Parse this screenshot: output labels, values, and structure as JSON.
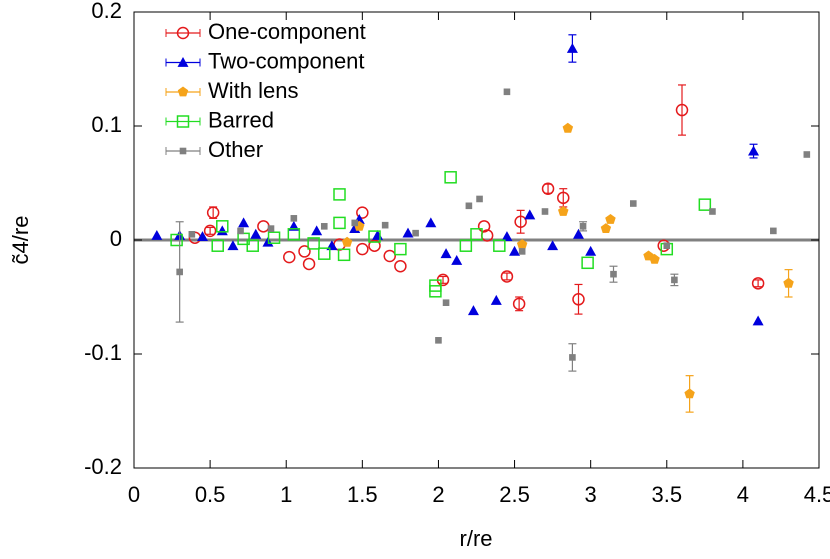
{
  "chart_data": {
    "type": "scatter",
    "x_label": "r/re",
    "y_label": "c̃4/re",
    "xlim": [
      0,
      4.5
    ],
    "xticks": [
      0,
      0.5,
      1,
      1.5,
      2,
      2.5,
      3,
      3.5,
      4,
      4.5
    ],
    "ylim": [
      -0.2,
      0.2
    ],
    "yticks": [
      -0.2,
      -0.1,
      0,
      0.1,
      0.2
    ],
    "legend": "top-left",
    "series": [
      {
        "name": "One-component",
        "color": "#e41a1c",
        "marker": "circle-open",
        "x": [
          0.4,
          0.5,
          0.52,
          0.85,
          1.02,
          1.12,
          1.15,
          1.35,
          1.5,
          1.5,
          1.58,
          1.68,
          1.75,
          2.03,
          2.3,
          2.32,
          2.45,
          2.53,
          2.54,
          2.72,
          2.82,
          2.92,
          3.6,
          3.48,
          4.1
        ],
        "values": [
          0.002,
          0.008,
          0.024,
          0.012,
          -0.015,
          -0.01,
          -0.021,
          -0.004,
          -0.008,
          0.024,
          -0.005,
          -0.014,
          -0.023,
          -0.035,
          0.012,
          0.004,
          -0.032,
          -0.056,
          0.016,
          0.045,
          0.037,
          -0.052,
          0.114,
          -0.005,
          -0.038
        ],
        "errors": [
          null,
          0.003,
          0.005,
          null,
          null,
          null,
          null,
          null,
          null,
          null,
          null,
          null,
          null,
          0.003,
          null,
          null,
          0.003,
          0.006,
          0.01,
          0.004,
          0.008,
          0.013,
          0.022,
          null,
          0.003
        ]
      },
      {
        "name": "Two-component",
        "color": "#0000dd",
        "marker": "triangle",
        "x": [
          0.15,
          0.3,
          0.45,
          0.58,
          0.65,
          0.72,
          0.8,
          0.88,
          1.05,
          1.2,
          1.3,
          1.45,
          1.48,
          1.6,
          1.8,
          1.95,
          2.05,
          2.12,
          2.23,
          2.38,
          2.45,
          2.5,
          2.6,
          2.75,
          2.88,
          2.92,
          3.0,
          4.07,
          4.1
        ],
        "values": [
          0.004,
          0.004,
          0.003,
          0.008,
          -0.005,
          0.015,
          0.005,
          -0.002,
          0.012,
          0.008,
          -0.005,
          0.01,
          0.018,
          0.004,
          0.006,
          0.015,
          -0.012,
          -0.018,
          -0.062,
          -0.053,
          0.003,
          -0.01,
          0.022,
          -0.005,
          0.168,
          0.005,
          -0.01,
          0.078,
          -0.071
        ],
        "errors": [
          null,
          null,
          null,
          null,
          null,
          null,
          null,
          null,
          null,
          null,
          null,
          null,
          null,
          null,
          null,
          null,
          null,
          null,
          null,
          null,
          null,
          null,
          null,
          null,
          0.012,
          null,
          null,
          0.006,
          null
        ]
      },
      {
        "name": "With lens",
        "color": "#f5a31a",
        "marker": "pentagon",
        "x": [
          1.4,
          1.48,
          2.55,
          2.82,
          2.85,
          3.1,
          3.13,
          3.38,
          3.42,
          3.65,
          4.3
        ],
        "values": [
          -0.002,
          0.012,
          -0.004,
          0.025,
          0.098,
          0.01,
          0.018,
          -0.014,
          -0.017,
          -0.135,
          -0.038
        ],
        "errors": [
          null,
          null,
          null,
          null,
          null,
          null,
          null,
          null,
          null,
          0.016,
          0.012
        ]
      },
      {
        "name": "Barred",
        "color": "#22dd22",
        "marker": "square-open",
        "x": [
          0.28,
          0.55,
          0.58,
          0.72,
          0.78,
          0.92,
          1.05,
          1.18,
          1.25,
          1.35,
          1.35,
          1.38,
          1.58,
          1.75,
          1.98,
          1.98,
          2.08,
          2.18,
          2.25,
          2.4,
          2.98,
          3.5,
          3.75
        ],
        "values": [
          0.0,
          -0.005,
          0.012,
          0.001,
          -0.005,
          0.002,
          0.005,
          -0.003,
          -0.012,
          0.04,
          0.015,
          -0.013,
          0.003,
          -0.008,
          -0.045,
          -0.04,
          0.055,
          -0.005,
          0.005,
          -0.005,
          -0.02,
          -0.008,
          0.031
        ],
        "errors": [
          null,
          null,
          null,
          null,
          null,
          null,
          null,
          null,
          null,
          null,
          null,
          null,
          null,
          null,
          null,
          null,
          null,
          null,
          null,
          null,
          null,
          null,
          null
        ]
      },
      {
        "name": "Other",
        "color": "#808080",
        "marker": "square",
        "x": [
          0.3,
          0.38,
          0.7,
          0.9,
          1.05,
          1.25,
          1.45,
          1.65,
          1.85,
          2.0,
          2.05,
          2.2,
          2.27,
          2.45,
          2.55,
          2.7,
          2.88,
          2.95,
          3.15,
          3.28,
          3.5,
          3.55,
          3.8,
          4.2,
          4.42
        ],
        "values": [
          -0.028,
          0.005,
          0.008,
          0.01,
          0.019,
          0.012,
          0.015,
          0.013,
          0.006,
          -0.088,
          -0.055,
          0.03,
          0.036,
          0.13,
          -0.01,
          0.025,
          -0.103,
          0.012,
          -0.03,
          0.032,
          -0.005,
          -0.035,
          0.025,
          0.008,
          0.075
        ],
        "errors": [
          0.044,
          null,
          null,
          null,
          null,
          null,
          null,
          null,
          null,
          null,
          null,
          null,
          null,
          null,
          null,
          null,
          0.012,
          0.004,
          0.007,
          null,
          null,
          0.005,
          null,
          null,
          null
        ]
      }
    ]
  }
}
